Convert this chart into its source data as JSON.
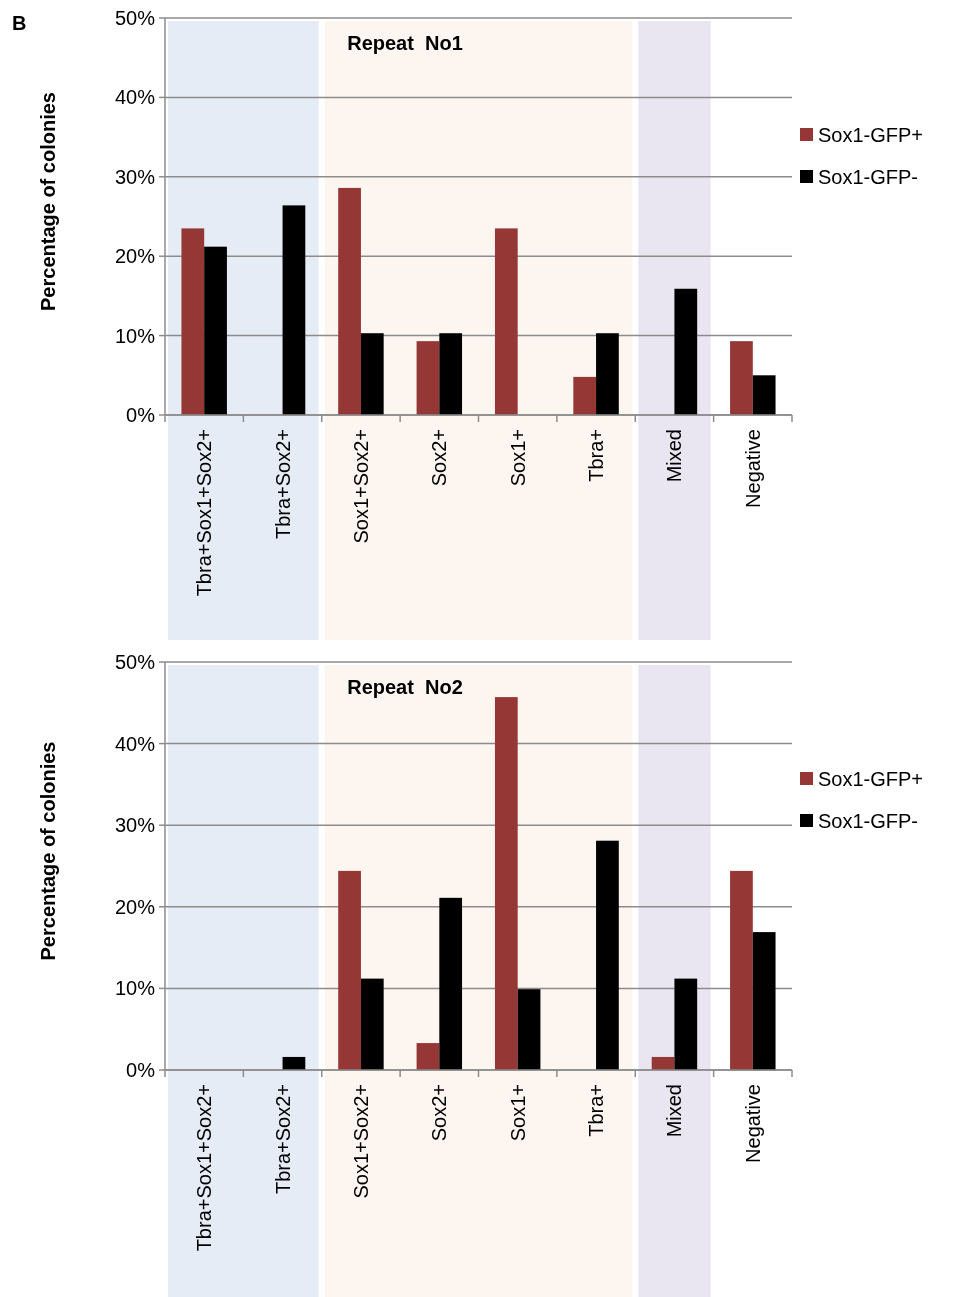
{
  "chart_data": [
    {
      "type": "bar",
      "title": "Repeat  No1",
      "ylabel": "Percentage of colonies",
      "annotations": [
        "B"
      ],
      "categories": [
        "Tbra+Sox1+Sox2+",
        "Tbra+Sox2+",
        "Sox1+Sox2+",
        "Sox2+",
        "Sox1+",
        "Tbra+",
        "Mixed",
        "Negative"
      ],
      "series": [
        {
          "name": "Sox1-GFP+",
          "color": "#953735",
          "values": [
            23.5,
            0,
            28.6,
            9.3,
            23.5,
            4.8,
            0,
            9.3
          ]
        },
        {
          "name": "Sox1-GFP-",
          "color": "#000000",
          "values": [
            21.2,
            26.4,
            10.3,
            10.3,
            0,
            10.3,
            15.9,
            5.0
          ]
        }
      ],
      "ylim": [
        0,
        50
      ],
      "yticks": [
        {
          "value": 0,
          "label": "0%"
        },
        {
          "value": 10,
          "label": "10%"
        },
        {
          "value": 20,
          "label": "20%"
        },
        {
          "value": 30,
          "label": "30%"
        },
        {
          "value": 40,
          "label": "40%"
        },
        {
          "value": 50,
          "label": "50%"
        }
      ],
      "grid": "y",
      "legend": "right",
      "bands": [
        {
          "axis": "x",
          "from": "Tbra+Sox1+Sox2+",
          "to": "Tbra+Sox2+",
          "color": "#e6ecf6"
        },
        {
          "axis": "x",
          "from": "Sox1+Sox2+",
          "to": "Tbra+",
          "color": "#fdf5ef"
        },
        {
          "axis": "x",
          "from": "Mixed",
          "to": "Mixed",
          "color": "#e9e6f1"
        }
      ]
    },
    {
      "type": "bar",
      "title": "Repeat  No2",
      "ylabel": "Percentage of colonies",
      "categories": [
        "Tbra+Sox1+Sox2+",
        "Tbra+Sox2+",
        "Sox1+Sox2+",
        "Sox2+",
        "Sox1+",
        "Tbra+",
        "Mixed",
        "Negative"
      ],
      "series": [
        {
          "name": "Sox1-GFP+",
          "color": "#953735",
          "values": [
            0,
            0,
            24.4,
            3.3,
            45.7,
            0,
            1.6,
            24.4
          ]
        },
        {
          "name": "Sox1-GFP-",
          "color": "#000000",
          "values": [
            0,
            1.6,
            11.2,
            21.1,
            9.9,
            28.1,
            11.2,
            16.9
          ]
        }
      ],
      "ylim": [
        0,
        50
      ],
      "yticks": [
        {
          "value": 0,
          "label": "0%"
        },
        {
          "value": 10,
          "label": "10%"
        },
        {
          "value": 20,
          "label": "20%"
        },
        {
          "value": 30,
          "label": "30%"
        },
        {
          "value": 40,
          "label": "40%"
        },
        {
          "value": 50,
          "label": "50%"
        }
      ],
      "grid": "y",
      "legend": "right",
      "bands": [
        {
          "axis": "x",
          "from": "Tbra+Sox1+Sox2+",
          "to": "Tbra+Sox2+",
          "color": "#e6ecf6"
        },
        {
          "axis": "x",
          "from": "Sox1+Sox2+",
          "to": "Tbra+",
          "color": "#fdf5ef"
        },
        {
          "axis": "x",
          "from": "Mixed",
          "to": "Mixed",
          "color": "#e9e6f1"
        }
      ]
    }
  ]
}
